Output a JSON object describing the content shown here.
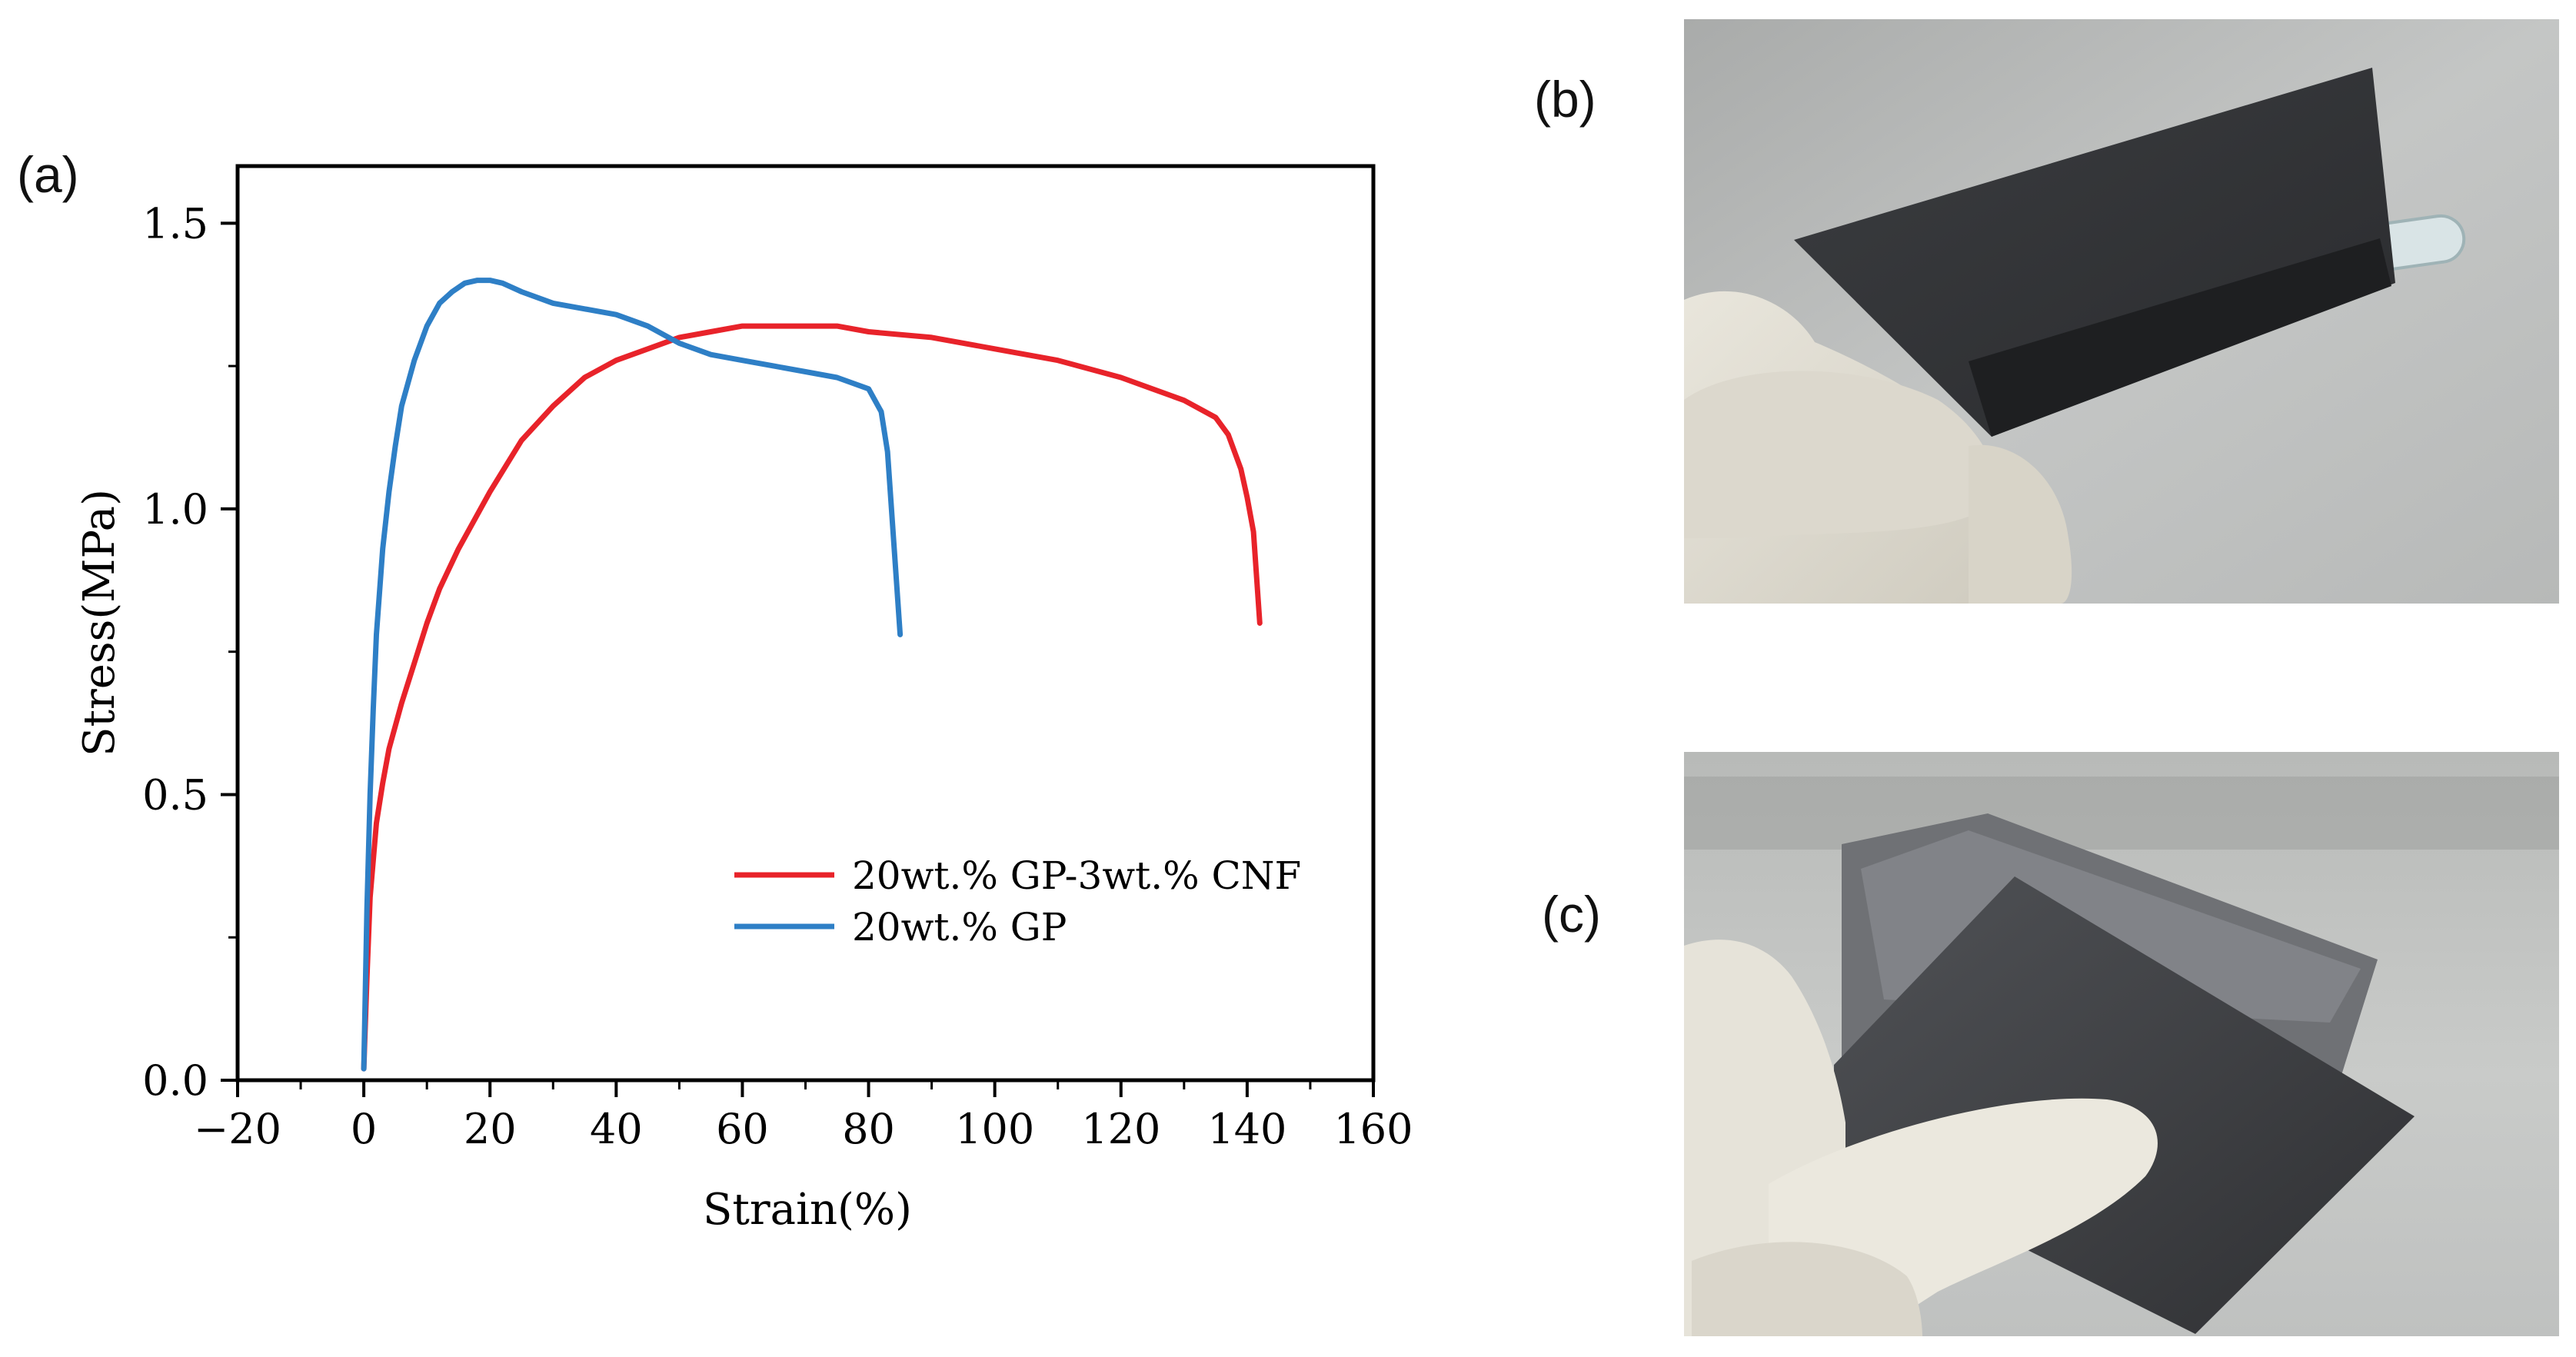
{
  "panels": {
    "a": "(a)",
    "b": "(b)",
    "c": "(c)"
  },
  "chart_data": {
    "type": "line",
    "title": "",
    "xlabel": "Strain(%)",
    "ylabel": "Stress(MPa)",
    "xlim": [
      -20,
      160
    ],
    "ylim": [
      0.0,
      1.6
    ],
    "xticks": [
      -20,
      0,
      20,
      40,
      60,
      80,
      100,
      120,
      140,
      160
    ],
    "xtick_labels": [
      "−20",
      "0",
      "20",
      "40",
      "60",
      "80",
      "100",
      "120",
      "140",
      "160"
    ],
    "yticks": [
      0.0,
      0.5,
      1.0,
      1.5
    ],
    "ytick_labels": [
      "0.0",
      "0.5",
      "1.0",
      "1.5"
    ],
    "grid": false,
    "legend_position": "lower-right",
    "series": [
      {
        "name": "20wt.% GP-3wt.% CNF",
        "color": "#e8232a",
        "x": [
          0,
          0.5,
          1,
          2,
          3,
          4,
          6,
          8,
          10,
          12,
          15,
          18,
          20,
          25,
          30,
          35,
          40,
          45,
          50,
          55,
          60,
          65,
          70,
          75,
          80,
          90,
          100,
          110,
          120,
          130,
          135,
          137,
          139,
          140,
          141,
          141.5,
          142
        ],
        "y": [
          0.02,
          0.18,
          0.32,
          0.45,
          0.52,
          0.58,
          0.66,
          0.73,
          0.8,
          0.86,
          0.93,
          0.99,
          1.03,
          1.12,
          1.18,
          1.23,
          1.26,
          1.28,
          1.3,
          1.31,
          1.32,
          1.32,
          1.32,
          1.32,
          1.31,
          1.3,
          1.28,
          1.26,
          1.23,
          1.19,
          1.16,
          1.13,
          1.07,
          1.02,
          0.96,
          0.88,
          0.8
        ]
      },
      {
        "name": "20wt.% GP",
        "color": "#2e7fc6",
        "x": [
          0,
          0.5,
          1,
          1.5,
          2,
          3,
          4,
          5,
          6,
          8,
          10,
          12,
          14,
          16,
          18,
          20,
          22,
          25,
          30,
          35,
          40,
          45,
          50,
          55,
          60,
          65,
          70,
          75,
          80,
          82,
          83,
          83.5,
          84,
          84.5,
          85
        ],
        "y": [
          0.02,
          0.3,
          0.5,
          0.65,
          0.78,
          0.93,
          1.03,
          1.11,
          1.18,
          1.26,
          1.32,
          1.36,
          1.38,
          1.395,
          1.4,
          1.4,
          1.395,
          1.38,
          1.36,
          1.35,
          1.34,
          1.32,
          1.29,
          1.27,
          1.26,
          1.25,
          1.24,
          1.23,
          1.21,
          1.17,
          1.1,
          1.02,
          0.94,
          0.86,
          0.78
        ]
      }
    ]
  }
}
